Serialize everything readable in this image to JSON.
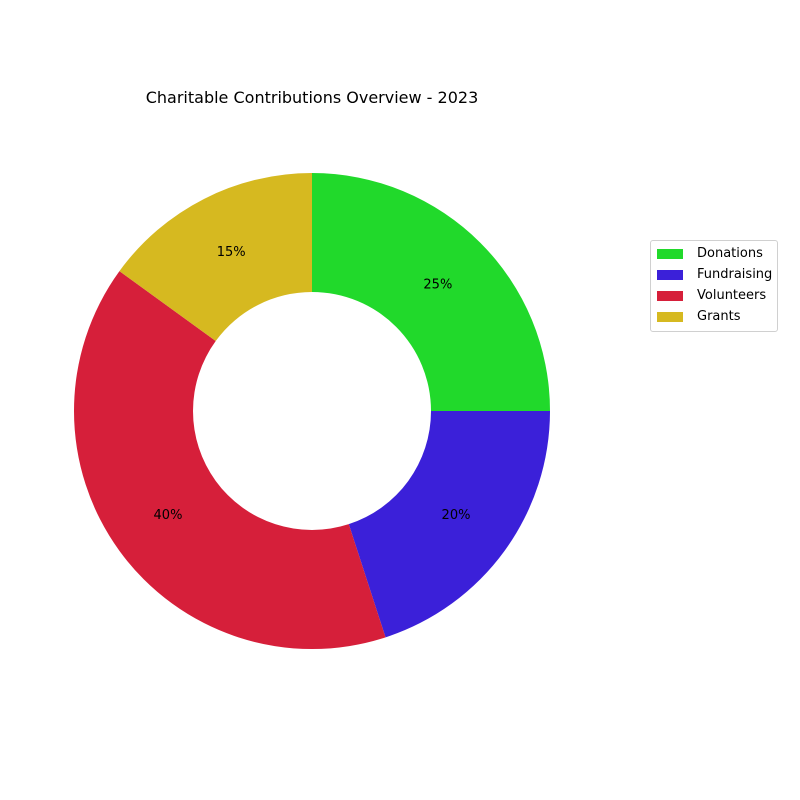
{
  "chart_data": {
    "type": "pie",
    "variant": "donut",
    "title": "Charitable Contributions Overview - 2023",
    "categories": [
      "Donations",
      "Fundraising",
      "Volunteers",
      "Grants"
    ],
    "values": [
      25,
      20,
      40,
      15
    ],
    "labels": [
      "25%",
      "20%",
      "40%",
      "15%"
    ],
    "colors": [
      "#21d92b",
      "#3b20d9",
      "#d61f3a",
      "#d6b920"
    ],
    "start": "top",
    "direction": "clockwise",
    "legend": {
      "position": "right",
      "entries": [
        "Donations",
        "Fundraising",
        "Volunteers",
        "Grants"
      ]
    }
  }
}
